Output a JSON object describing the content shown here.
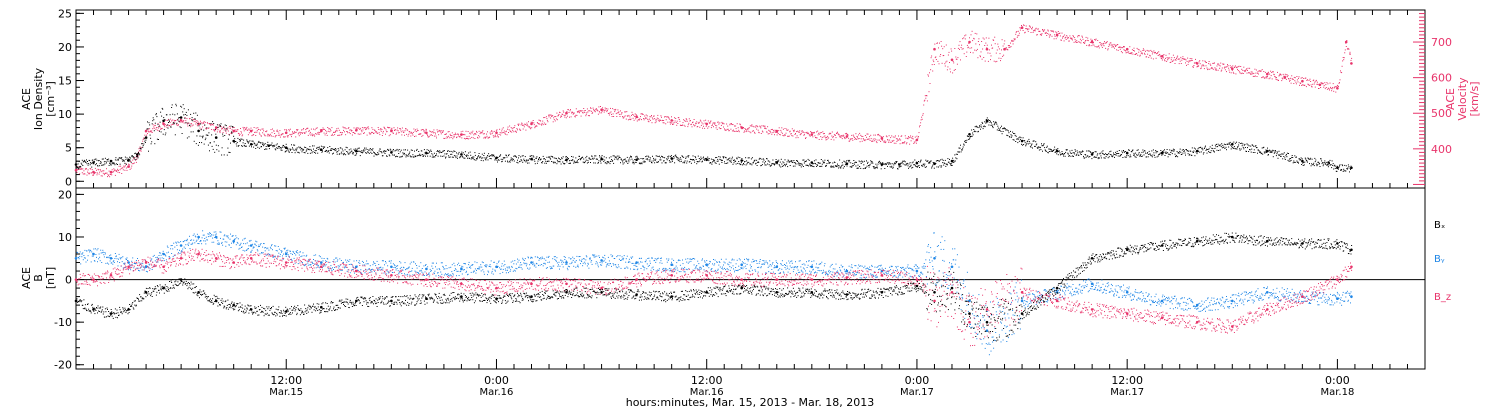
{
  "colors": {
    "black": "#000000",
    "pink": "#e8336a",
    "blue": "#1f86e6",
    "axis": "#000000"
  },
  "x_axis": {
    "title": "hours:minutes, Mar. 15, 2013 - Mar. 18, 2013",
    "ticks": [
      {
        "hours": 12,
        "time": "12:00",
        "date": "Mar.15"
      },
      {
        "hours": 24,
        "time": "0:00",
        "date": "Mar.16"
      },
      {
        "hours": 36,
        "time": "12:00",
        "date": "Mar.16"
      },
      {
        "hours": 48,
        "time": "0:00",
        "date": "Mar.17"
      },
      {
        "hours": 60,
        "time": "12:00",
        "date": "Mar.17"
      },
      {
        "hours": 72,
        "time": "0:00",
        "date": "Mar.18"
      }
    ]
  },
  "chart_data": [
    {
      "type": "scatter",
      "panel": "top",
      "title": "",
      "xlabel": "hours:minutes, Mar. 15, 2013 - Mar. 18, 2013",
      "xlim_hours": [
        0,
        77
      ],
      "left_axis": {
        "label_lines": [
          "ACE",
          "Ion Density",
          "[cm⁻³]"
        ],
        "ylim": [
          -1,
          25.5
        ],
        "ticks": [
          0,
          5,
          10,
          15,
          20,
          25
        ]
      },
      "right_axis": {
        "label_lines": [
          "ACE",
          "Velocity",
          "[km/s]"
        ],
        "ylim": [
          290,
          790
        ],
        "ticks": [
          400,
          500,
          600,
          700
        ]
      },
      "series": [
        {
          "name": "",
          "axis": "left",
          "color": "black",
          "x_hours": [
            0,
            1,
            2,
            3,
            3.5,
            4,
            5,
            6,
            7,
            8,
            9,
            10,
            11,
            12,
            14,
            16,
            18,
            20,
            22,
            24,
            26,
            28,
            30,
            32,
            34,
            36,
            38,
            40,
            42,
            44,
            46,
            47,
            48,
            49,
            50,
            51,
            52,
            54,
            56,
            58,
            60,
            62,
            64,
            66,
            68,
            70,
            71.5,
            72,
            72.8
          ],
          "values": [
            2.5,
            2.8,
            3,
            3.2,
            4,
            6.5,
            9,
            9.5,
            7.5,
            6.5,
            6,
            5.5,
            5.3,
            5,
            4.7,
            4.5,
            4.3,
            4.2,
            4,
            3.5,
            3.3,
            3.2,
            3.3,
            3.2,
            3.4,
            3.2,
            3.1,
            2.8,
            2.8,
            2.6,
            2.5,
            2.5,
            2.7,
            2.6,
            3,
            7,
            9,
            6,
            4.5,
            4,
            4.2,
            4.2,
            4.5,
            5.5,
            4.5,
            3,
            2.8,
            2,
            2
          ]
        },
        {
          "name": "",
          "axis": "right",
          "color": "pink",
          "x_hours": [
            0,
            1,
            2,
            3,
            3.5,
            4,
            5,
            6,
            7,
            8,
            9,
            10,
            12,
            14,
            16,
            18,
            20,
            22,
            24,
            26,
            28,
            30,
            32,
            34,
            36,
            38,
            40,
            42,
            44,
            46,
            48,
            49,
            50,
            51,
            52,
            53,
            54,
            56,
            58,
            60,
            62,
            64,
            66,
            68,
            69,
            70,
            71,
            72,
            72.5,
            72.8
          ],
          "values": [
            340,
            335,
            335,
            350,
            380,
            450,
            470,
            480,
            470,
            460,
            450,
            450,
            445,
            450,
            452,
            450,
            445,
            440,
            445,
            470,
            500,
            510,
            490,
            480,
            470,
            460,
            450,
            440,
            435,
            430,
            425,
            680,
            650,
            700,
            680,
            680,
            740,
            720,
            700,
            680,
            660,
            640,
            625,
            610,
            600,
            590,
            580,
            570,
            700,
            640
          ]
        }
      ]
    },
    {
      "type": "scatter",
      "panel": "bottom",
      "title": "",
      "xlabel": "hours:minutes, Mar. 15, 2013 - Mar. 18, 2013",
      "xlim_hours": [
        0,
        77
      ],
      "ylabel_lines": [
        "ACE",
        "B",
        "[nT]"
      ],
      "ylim": [
        -21,
        21.5
      ],
      "ticks": [
        -20,
        -10,
        0,
        10,
        20
      ],
      "zero_line": true,
      "series": [
        {
          "name": "Bₓ",
          "color": "black",
          "x_hours": [
            0,
            1,
            2,
            3,
            4,
            5,
            6,
            7,
            8,
            9,
            10,
            12,
            14,
            16,
            18,
            20,
            22,
            24,
            26,
            28,
            30,
            32,
            34,
            36,
            38,
            40,
            42,
            44,
            46,
            48,
            49,
            50,
            51,
            52,
            54,
            56,
            58,
            60,
            62,
            64,
            66,
            68,
            70,
            72,
            72.8
          ],
          "values": [
            -5,
            -7,
            -8,
            -7,
            -3,
            -2,
            0,
            -3,
            -5,
            -6,
            -7,
            -7.5,
            -6.5,
            -5,
            -5,
            -4.5,
            -4,
            -4.5,
            -4,
            -3,
            -3,
            -3.5,
            -4,
            -3,
            -2,
            -3,
            -3,
            -3.5,
            -3,
            -1.5,
            -3,
            -2,
            -8,
            -10,
            -8,
            -2,
            5,
            7,
            8,
            9,
            10,
            9,
            8.5,
            8.5,
            7
          ]
        },
        {
          "name": "Bᵧ",
          "color": "blue",
          "x_hours": [
            0,
            1,
            2,
            3,
            4,
            5,
            6,
            7,
            8,
            9,
            10,
            12,
            14,
            16,
            18,
            20,
            22,
            24,
            26,
            28,
            30,
            32,
            34,
            36,
            38,
            40,
            42,
            44,
            46,
            48,
            49,
            50,
            51,
            52,
            54,
            56,
            58,
            60,
            62,
            64,
            66,
            68,
            70,
            72,
            72.8
          ],
          "values": [
            5,
            6,
            5,
            4,
            3,
            6,
            8,
            10,
            10,
            9,
            8,
            6,
            4,
            3,
            3,
            2.5,
            2.5,
            3,
            4,
            4,
            4.5,
            4,
            3.5,
            3.5,
            3.5,
            3,
            3,
            2,
            2,
            2,
            5,
            3,
            -5,
            -12,
            -5,
            -3,
            -1,
            -3,
            -5,
            -6,
            -5,
            -3,
            -4,
            -4.5,
            -4
          ]
        },
        {
          "name": "B_z",
          "color": "pink",
          "x_hours": [
            0,
            1,
            2,
            3,
            4,
            5,
            6,
            7,
            8,
            9,
            10,
            12,
            14,
            16,
            18,
            20,
            22,
            24,
            26,
            28,
            30,
            32,
            34,
            36,
            38,
            40,
            42,
            44,
            46,
            48,
            49,
            50,
            51,
            52,
            54,
            56,
            58,
            60,
            62,
            64,
            66,
            68,
            70,
            72,
            72.8
          ],
          "values": [
            0,
            0,
            1,
            3,
            4,
            3,
            5,
            6,
            5,
            4,
            5,
            4,
            3,
            2,
            1,
            0,
            -1,
            -2,
            -1,
            -1,
            -2,
            0,
            1,
            1,
            0,
            0,
            0,
            0.5,
            1,
            0,
            -5,
            -3,
            -10,
            -7,
            -3,
            -5,
            -7,
            -8,
            -9,
            -10,
            -11,
            -7,
            -4,
            0,
            3
          ]
        }
      ],
      "legend": {
        "placement": "right",
        "entries": [
          "Bₓ",
          "Bᵧ",
          "B_z"
        ]
      }
    }
  ]
}
